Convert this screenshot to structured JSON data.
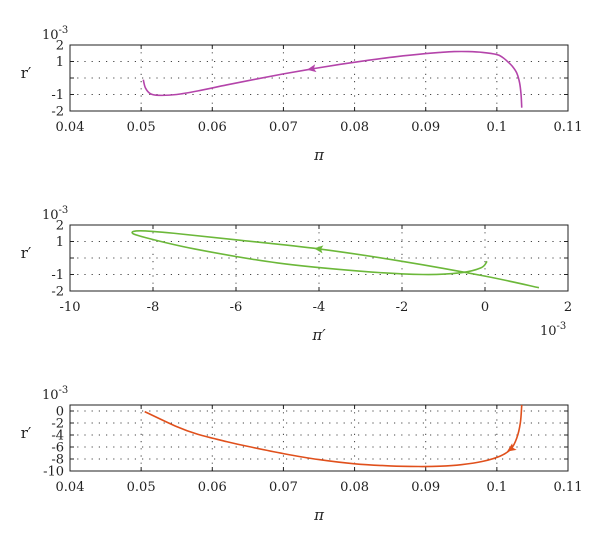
{
  "chart_data": [
    {
      "type": "line",
      "xlabel": "π",
      "ylabel": "r′",
      "y_multiplier": "10-3",
      "xlim": [
        0.04,
        0.11
      ],
      "ylim": [
        -2,
        2
      ],
      "xticks": [
        0.04,
        0.05,
        0.06,
        0.07,
        0.08,
        0.09,
        0.1,
        0.11
      ],
      "xtick_labels": [
        "0.04",
        "0.05",
        "0.06",
        "0.07",
        "0.08",
        "0.09",
        "0.1",
        "0.11"
      ],
      "yticks": [
        -2,
        -1,
        0,
        1,
        2
      ],
      "ytick_labels": [
        "-2",
        "-1",
        "",
        "1",
        "2"
      ],
      "grid": true,
      "series": [
        {
          "color": "#b444aa",
          "arrow_at_index": 16,
          "x": [
            0.1035,
            0.1034,
            0.1032,
            0.1028,
            0.1022,
            0.1015,
            0.1008,
            0.1,
            0.098,
            0.096,
            0.094,
            0.092,
            0.09,
            0.086,
            0.082,
            0.078,
            0.074,
            0.07,
            0.066,
            0.062,
            0.058,
            0.055,
            0.0525,
            0.0513,
            0.0506,
            0.0503
          ],
          "y": [
            -1.8,
            -1.0,
            -0.3,
            0.3,
            0.7,
            1.0,
            1.25,
            1.42,
            1.55,
            1.6,
            1.6,
            1.55,
            1.48,
            1.3,
            1.08,
            0.83,
            0.55,
            0.25,
            -0.08,
            -0.42,
            -0.78,
            -1.0,
            -1.05,
            -0.95,
            -0.6,
            -0.1
          ]
        }
      ]
    },
    {
      "type": "line",
      "xlabel": "π′",
      "ylabel": "r′",
      "y_multiplier": "10-3",
      "x_multiplier": "10-3",
      "xlim": [
        -10,
        2
      ],
      "ylim": [
        -2,
        2
      ],
      "xticks": [
        -10,
        -8,
        -6,
        -4,
        -2,
        0,
        2
      ],
      "xtick_labels": [
        "-10",
        "-8",
        "-6",
        "-4",
        "-2",
        "0",
        "2"
      ],
      "yticks": [
        -2,
        -1,
        0,
        1,
        2
      ],
      "ytick_labels": [
        "-2",
        "-1",
        "",
        "1",
        "2"
      ],
      "grid": true,
      "series": [
        {
          "color": "#6cb83a",
          "arrow_at_index": 3,
          "x": [
            1.3,
            0,
            -2,
            -4,
            -6,
            -7.5,
            -8.3,
            -8.5,
            -8.2,
            -7,
            -5,
            -3,
            -1.5,
            -0.6,
            -0.1,
            0.05
          ],
          "y": [
            -1.8,
            -1.1,
            -0.2,
            0.55,
            1.1,
            1.5,
            1.65,
            1.52,
            1.25,
            0.55,
            -0.3,
            -0.8,
            -1.0,
            -0.9,
            -0.6,
            -0.2
          ]
        }
      ]
    },
    {
      "type": "line",
      "xlabel": "π",
      "ylabel": "r′",
      "y_multiplier": "10-3",
      "xlim": [
        0.04,
        0.11
      ],
      "ylim": [
        -10,
        1
      ],
      "xticks": [
        0.04,
        0.05,
        0.06,
        0.07,
        0.08,
        0.09,
        0.1,
        0.11
      ],
      "xtick_labels": [
        "0.04",
        "0.05",
        "0.06",
        "0.07",
        "0.08",
        "0.09",
        "0.1",
        "0.11"
      ],
      "yticks": [
        -10,
        -8,
        -6,
        -4,
        -2,
        0
      ],
      "ytick_labels": [
        "-10",
        "-8",
        "-6",
        "-4",
        "-2",
        "0"
      ],
      "grid": true,
      "series": [
        {
          "color": "#e0501c",
          "arrow_at_index": 3,
          "x": [
            0.1035,
            0.1033,
            0.1028,
            0.102,
            0.1005,
            0.098,
            0.095,
            0.092,
            0.089,
            0.085,
            0.08,
            0.075,
            0.07,
            0.065,
            0.062,
            0.058,
            0.055,
            0.0505
          ],
          "y": [
            1.0,
            -2.0,
            -4.5,
            -6.3,
            -7.5,
            -8.4,
            -8.95,
            -9.2,
            -9.25,
            -9.15,
            -8.8,
            -8.1,
            -7.1,
            -5.9,
            -5.1,
            -3.9,
            -2.6,
            -0.1
          ]
        }
      ]
    }
  ]
}
